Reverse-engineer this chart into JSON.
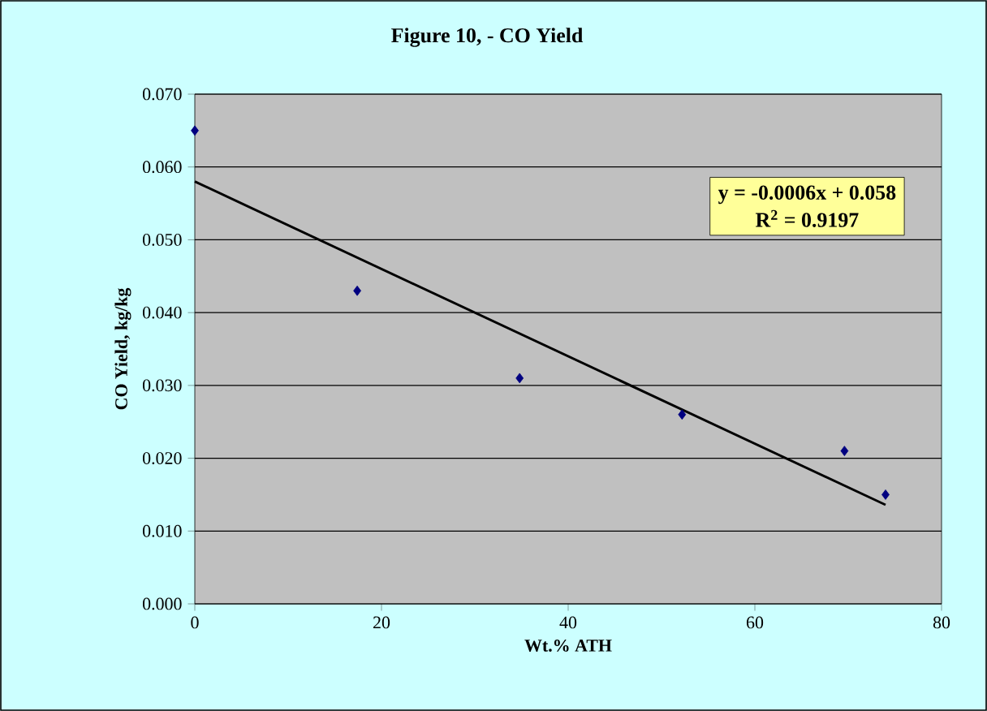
{
  "chart_data": {
    "type": "scatter",
    "title": "Figure 10, - CO Yield",
    "xlabel": "Wt.% ATH",
    "ylabel": "CO Yield, kg/kg",
    "xlim": [
      0,
      80
    ],
    "xticks": [
      0,
      20,
      40,
      60,
      80
    ],
    "ylim": [
      0,
      0.07
    ],
    "yticks": [
      {
        "value": 0,
        "label": "0.000"
      },
      {
        "value": 0.01,
        "label": "0.010"
      },
      {
        "value": 0.02,
        "label": "0.020"
      },
      {
        "value": 0.03,
        "label": "0.030"
      },
      {
        "value": 0.04,
        "label": "0.040"
      },
      {
        "value": 0.05,
        "label": "0.050"
      },
      {
        "value": 0.06,
        "label": "0.060"
      },
      {
        "value": 0.07,
        "label": "0.070"
      }
    ],
    "grid": "y",
    "annotations": [
      "y = -0.0006x + 0.058",
      "R$^{2}$ = 0.9197"
    ],
    "series": [
      {
        "color": "#000080",
        "marker": "diamond",
        "x": [
          0,
          17.4,
          34.8,
          52.2,
          69.6,
          74
        ],
        "values": [
          0.065,
          0.043,
          0.031,
          0.026,
          0.021,
          0.015
        ]
      },
      {
        "type": "line",
        "color": "#000000",
        "line_style": "solid",
        "x": [
          0,
          74
        ],
        "values": [
          0.058,
          0.0136
        ]
      }
    ]
  }
}
